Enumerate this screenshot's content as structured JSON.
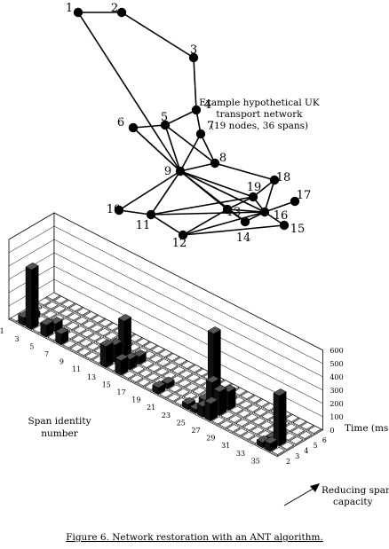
{
  "network": {
    "title_lines": [
      "Example hypothetical UK",
      "transport network",
      "(19 nodes, 36 spans)"
    ],
    "nodes": [
      {
        "id": "1",
        "label": "1"
      },
      {
        "id": "2",
        "label": "2"
      },
      {
        "id": "3",
        "label": "3"
      },
      {
        "id": "4",
        "label": "4"
      },
      {
        "id": "5",
        "label": "5"
      },
      {
        "id": "6",
        "label": "6"
      },
      {
        "id": "7",
        "label": "7"
      },
      {
        "id": "8",
        "label": "8"
      },
      {
        "id": "9",
        "label": "9"
      },
      {
        "id": "10",
        "label": "10"
      },
      {
        "id": "11",
        "label": "11"
      },
      {
        "id": "12",
        "label": "12"
      },
      {
        "id": "13",
        "label": "13"
      },
      {
        "id": "14",
        "label": "14"
      },
      {
        "id": "15",
        "label": "15"
      },
      {
        "id": "16",
        "label": "16"
      },
      {
        "id": "17",
        "label": "17"
      },
      {
        "id": "18",
        "label": "18"
      },
      {
        "id": "19",
        "label": "19"
      }
    ],
    "edges": [
      [
        "1",
        "2"
      ],
      [
        "2",
        "3"
      ],
      [
        "1",
        "9"
      ],
      [
        "3",
        "4"
      ],
      [
        "4",
        "5"
      ],
      [
        "4",
        "7"
      ],
      [
        "5",
        "6"
      ],
      [
        "5",
        "9"
      ],
      [
        "5",
        "8"
      ],
      [
        "7",
        "9"
      ],
      [
        "7",
        "8"
      ],
      [
        "6",
        "9"
      ],
      [
        "8",
        "18"
      ],
      [
        "8",
        "9"
      ],
      [
        "9",
        "10"
      ],
      [
        "9",
        "11"
      ],
      [
        "9",
        "13"
      ],
      [
        "9",
        "19"
      ],
      [
        "9",
        "16"
      ],
      [
        "10",
        "11"
      ],
      [
        "11",
        "19"
      ],
      [
        "11",
        "16"
      ],
      [
        "11",
        "12"
      ],
      [
        "12",
        "13"
      ],
      [
        "12",
        "15"
      ],
      [
        "13",
        "16"
      ],
      [
        "13",
        "14"
      ],
      [
        "14",
        "16"
      ],
      [
        "15",
        "16"
      ],
      [
        "16",
        "17"
      ],
      [
        "16",
        "18"
      ],
      [
        "18",
        "19"
      ],
      [
        "19",
        "16"
      ],
      [
        "9",
        "14"
      ],
      [
        "12",
        "16"
      ],
      [
        "13",
        "19"
      ]
    ]
  },
  "chart": {
    "x_axis_label_lines": [
      "Span identity",
      "number"
    ],
    "x_tick_labels": [
      "1",
      "3",
      "5",
      "7",
      "9",
      "11",
      "13",
      "15",
      "17",
      "19",
      "21",
      "23",
      "25",
      "27",
      "29",
      "31",
      "33",
      "35"
    ],
    "y_axis_label": "Time (ms)",
    "y_tick_labels": [
      "0",
      "100",
      "200",
      "300",
      "400",
      "500",
      "600"
    ],
    "depth_tick_labels": [
      "2",
      "3",
      "4",
      "5",
      "6"
    ],
    "depth_axis_label_lines": [
      "Reducing spare",
      "capacity"
    ]
  },
  "chart_data": {
    "type": "bar3d",
    "x_label": "Span identity number",
    "y_label": "Time (ms)",
    "depth_label": "Reducing spare capacity",
    "spans": [
      1,
      2,
      3,
      4,
      5,
      6,
      7,
      8,
      9,
      10,
      11,
      12,
      13,
      14,
      15,
      16,
      17,
      18,
      19,
      20,
      21,
      22,
      23,
      24,
      25,
      26,
      27,
      28,
      29,
      30,
      31,
      32,
      33,
      34,
      35,
      36
    ],
    "depth_levels": [
      2,
      3,
      4,
      5,
      6
    ],
    "ylim": [
      0,
      600
    ],
    "values": [
      [
        0,
        0,
        0,
        0,
        0
      ],
      [
        60,
        40,
        0,
        0,
        0
      ],
      [
        450,
        0,
        0,
        0,
        0
      ],
      [
        0,
        0,
        0,
        0,
        0
      ],
      [
        90,
        60,
        0,
        0,
        0
      ],
      [
        0,
        0,
        0,
        0,
        0
      ],
      [
        80,
        0,
        0,
        0,
        0
      ],
      [
        0,
        0,
        0,
        0,
        0
      ],
      [
        0,
        0,
        0,
        0,
        0
      ],
      [
        0,
        0,
        0,
        0,
        0
      ],
      [
        0,
        0,
        0,
        0,
        0
      ],
      [
        0,
        0,
        0,
        0,
        0
      ],
      [
        160,
        130,
        270,
        0,
        0
      ],
      [
        0,
        0,
        0,
        0,
        0
      ],
      [
        110,
        80,
        60,
        0,
        0
      ],
      [
        0,
        0,
        0,
        0,
        0
      ],
      [
        0,
        0,
        0,
        0,
        0
      ],
      [
        0,
        0,
        0,
        0,
        0
      ],
      [
        0,
        0,
        0,
        0,
        0
      ],
      [
        50,
        40,
        0,
        0,
        0
      ],
      [
        0,
        0,
        0,
        0,
        0
      ],
      [
        0,
        0,
        0,
        0,
        0
      ],
      [
        0,
        0,
        0,
        0,
        0
      ],
      [
        40,
        0,
        0,
        0,
        0
      ],
      [
        30,
        60,
        520,
        0,
        0
      ],
      [
        80,
        220,
        100,
        0,
        0
      ],
      [
        130,
        180,
        140,
        0,
        0
      ],
      [
        0,
        0,
        0,
        0,
        0
      ],
      [
        0,
        0,
        0,
        0,
        0
      ],
      [
        0,
        0,
        0,
        0,
        0
      ],
      [
        0,
        0,
        0,
        0,
        0
      ],
      [
        0,
        0,
        0,
        0,
        0
      ],
      [
        0,
        0,
        0,
        0,
        0
      ],
      [
        40,
        30,
        0,
        0,
        0
      ],
      [
        60,
        380,
        0,
        0,
        0
      ],
      [
        0,
        0,
        0,
        0,
        0
      ]
    ]
  },
  "caption": "Figure 6.  Network restoration with an ANT algorithm."
}
